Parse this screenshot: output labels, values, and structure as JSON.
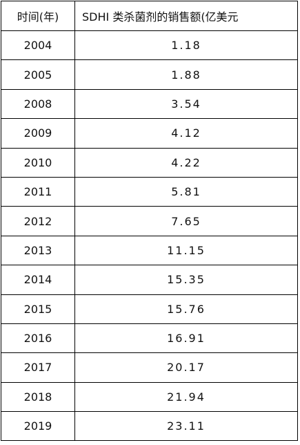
{
  "table": {
    "header": [
      "时间(年)",
      "SDHI 类杀菌剂的销售额(亿美元"
    ],
    "rows": [
      [
        "2004",
        "1.18"
      ],
      [
        "2005",
        "1.88"
      ],
      [
        "2008",
        "3.54"
      ],
      [
        "2009",
        "4.12"
      ],
      [
        "2010",
        "4.22"
      ],
      [
        "2011",
        "5.81"
      ],
      [
        "2012",
        "7.65"
      ],
      [
        "2013",
        "11.15"
      ],
      [
        "2014",
        "15.35"
      ],
      [
        "2015",
        "15.76"
      ],
      [
        "2016",
        "16.91"
      ],
      [
        "2017",
        "20.17"
      ],
      [
        "2018",
        "21.94"
      ],
      [
        "2019",
        "23.11"
      ]
    ]
  }
}
